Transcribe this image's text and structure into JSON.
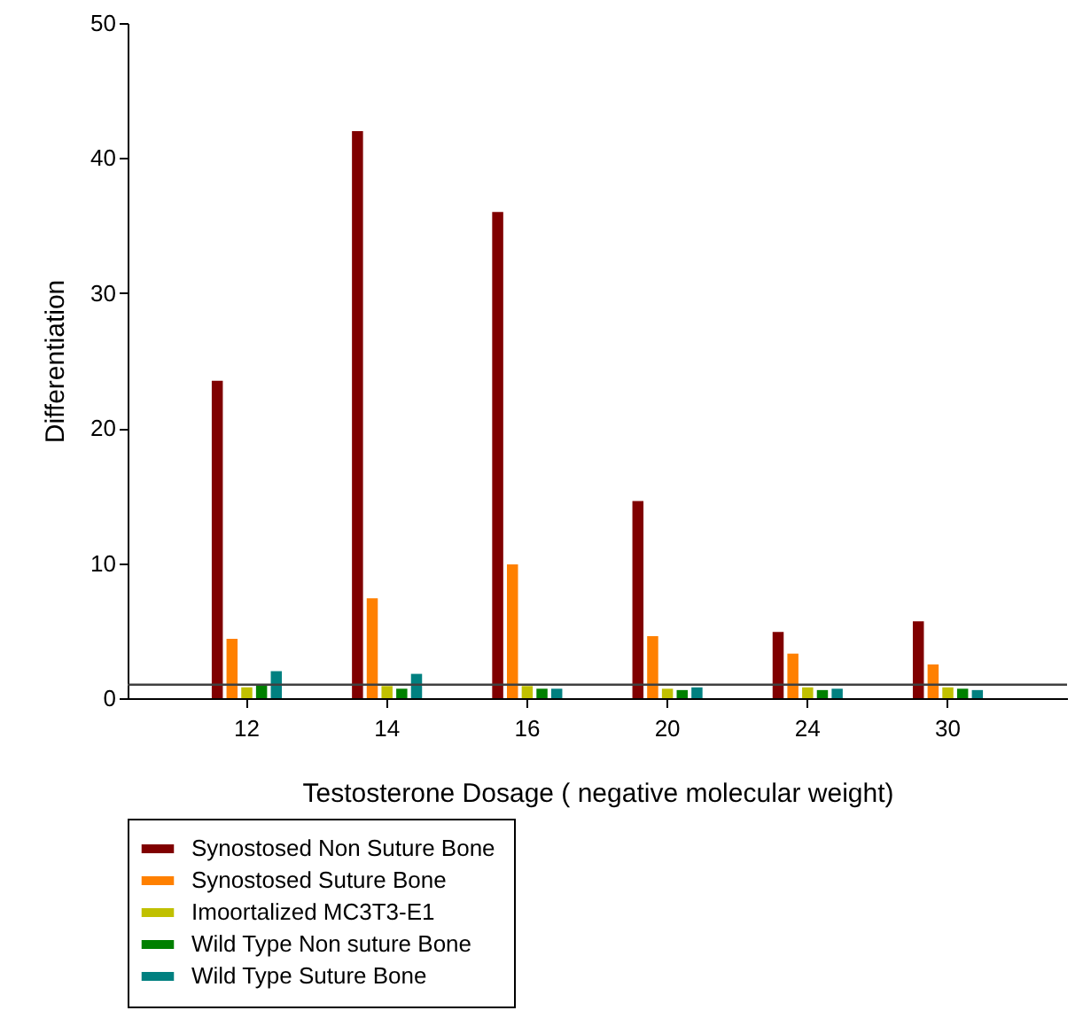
{
  "chart_data": {
    "type": "bar",
    "xlabel": "Testosterone Dosage ( negative molecular weight)",
    "ylabel": "Differentiation",
    "categories": [
      "12",
      "14",
      "16",
      "20",
      "24",
      "30"
    ],
    "series": [
      {
        "name": "Synostosed Non Suture Bone",
        "color": "#800000",
        "values": [
          23.5,
          42,
          36,
          14.6,
          4.9,
          5.7
        ]
      },
      {
        "name": "Synostosed Suture Bone",
        "color": "#ff8000",
        "values": [
          4.4,
          7.4,
          9.9,
          4.6,
          3.3,
          2.5
        ]
      },
      {
        "name": "Imoortalized MC3T3-E1",
        "color": "#c0c000",
        "values": [
          0.8,
          0.9,
          0.9,
          0.7,
          0.8,
          0.8
        ]
      },
      {
        "name": "Wild Type Non suture Bone",
        "color": "#008000",
        "values": [
          1,
          0.7,
          0.7,
          0.6,
          0.6,
          0.7
        ]
      },
      {
        "name": "Wild Type Suture Bone",
        "color": "#008080",
        "values": [
          2,
          1.8,
          0.7,
          0.8,
          0.7,
          0.6
        ]
      }
    ],
    "ylim": [
      0,
      50
    ],
    "yticks": [
      0,
      10,
      20,
      30,
      40,
      50
    ],
    "ref_lines": [
      {
        "axis": "y",
        "value": 1,
        "color": "#404040"
      }
    ],
    "grid": false,
    "legend": "bottom left"
  }
}
